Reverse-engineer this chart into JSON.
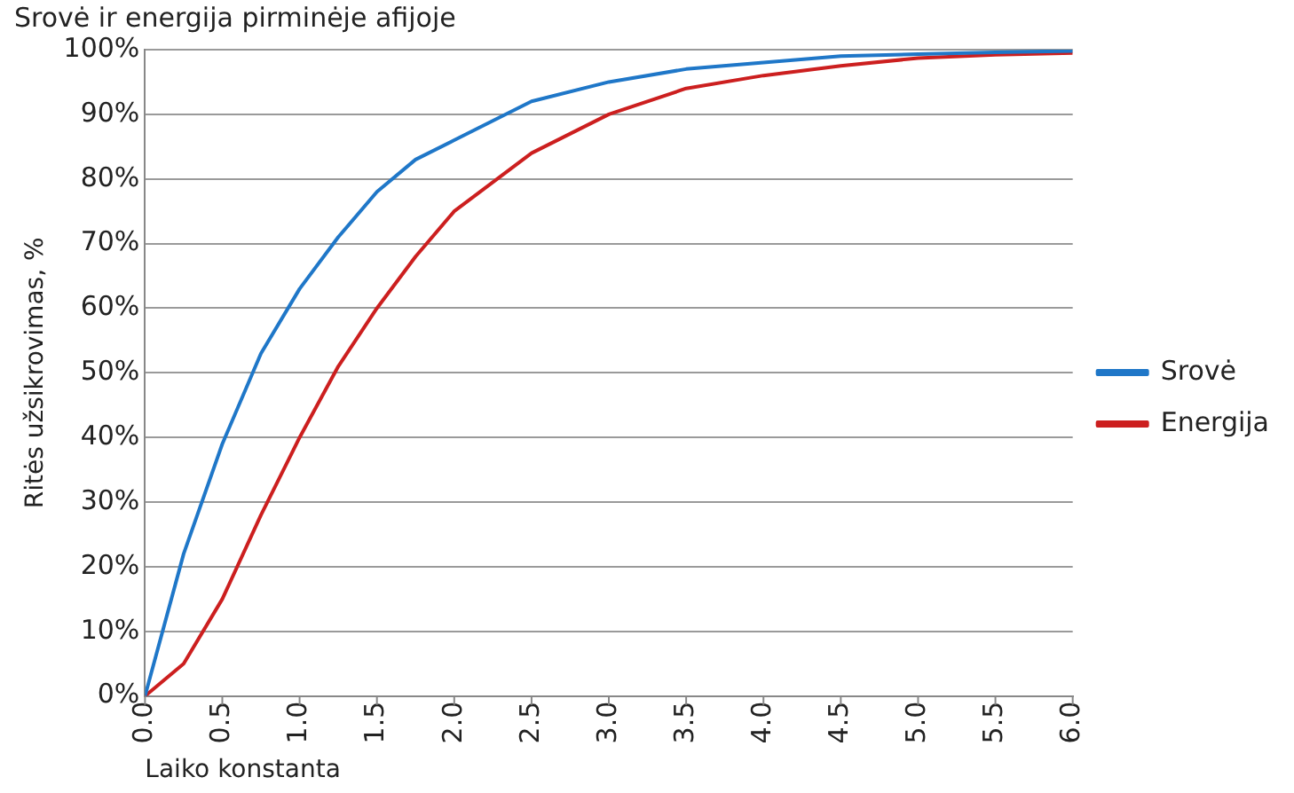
{
  "chart_data": {
    "type": "line",
    "title": "Srovė ir energija pirminėje afijoje",
    "xlabel": "Laiko konstanta",
    "ylabel": "Ritės užsikrovimas, %",
    "x": [
      0,
      0.25,
      0.5,
      0.75,
      1,
      1.25,
      1.5,
      1.75,
      2,
      2.5,
      3,
      3.5,
      4,
      4.5,
      5,
      5.5,
      6
    ],
    "series": [
      {
        "name": "Srovė",
        "color": "#1f77c8",
        "values": [
          0,
          22,
          39,
          53,
          63,
          71,
          78,
          83,
          86,
          92,
          95,
          97,
          98,
          99,
          99.3,
          99.6,
          99.8
        ]
      },
      {
        "name": "Energija",
        "color": "#cc1f1f",
        "values": [
          0,
          5,
          15,
          28,
          40,
          51,
          60,
          68,
          75,
          84,
          90,
          94,
          96,
          97.5,
          98.7,
          99.2,
          99.5
        ]
      }
    ],
    "xlim": [
      0,
      6
    ],
    "xticks": [
      {
        "value": 0,
        "label": "0.0"
      },
      {
        "value": 0.5,
        "label": "0.5"
      },
      {
        "value": 1,
        "label": "1.0"
      },
      {
        "value": 1.5,
        "label": "1.5"
      },
      {
        "value": 2,
        "label": "2.0"
      },
      {
        "value": 2.5,
        "label": "2.5"
      },
      {
        "value": 3,
        "label": "3.0"
      },
      {
        "value": 3.5,
        "label": "3.5"
      },
      {
        "value": 4,
        "label": "4.0"
      },
      {
        "value": 4.5,
        "label": "4.5"
      },
      {
        "value": 5,
        "label": "5.0"
      },
      {
        "value": 5.5,
        "label": "5.5"
      },
      {
        "value": 6,
        "label": "6.0"
      }
    ],
    "ylim": [
      0,
      100
    ],
    "yticks": [
      {
        "value": 0,
        "label": "0%"
      },
      {
        "value": 10,
        "label": "10%"
      },
      {
        "value": 20,
        "label": "20%"
      },
      {
        "value": 30,
        "label": "30%"
      },
      {
        "value": 40,
        "label": "40%"
      },
      {
        "value": 50,
        "label": "50%"
      },
      {
        "value": 60,
        "label": "60%"
      },
      {
        "value": 70,
        "label": "70%"
      },
      {
        "value": 80,
        "label": "80%"
      },
      {
        "value": 90,
        "label": "90%"
      },
      {
        "value": 100,
        "label": "100%"
      }
    ],
    "grid": "y",
    "legend": "right",
    "marker": "none",
    "line_style": "solid"
  }
}
